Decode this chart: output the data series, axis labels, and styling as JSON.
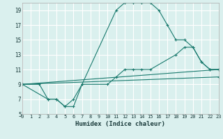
{
  "background_color": "#daf0ee",
  "grid_color": "#ffffff",
  "line_color": "#1a7a6e",
  "xlabel": "Humidex (Indice chaleur)",
  "ylim": [
    5,
    20
  ],
  "xlim": [
    0,
    23
  ],
  "yticks": [
    5,
    7,
    9,
    11,
    13,
    15,
    17,
    19
  ],
  "xticks": [
    0,
    1,
    2,
    3,
    4,
    5,
    6,
    7,
    8,
    9,
    10,
    11,
    12,
    13,
    14,
    15,
    16,
    17,
    18,
    19,
    20,
    21,
    22,
    23
  ],
  "series": [
    {
      "x": [
        0,
        2,
        3,
        4,
        5,
        6,
        7,
        11,
        12,
        13,
        14,
        15,
        16,
        17,
        18,
        19,
        20,
        21,
        22,
        23
      ],
      "y": [
        9,
        9,
        7,
        7,
        6,
        7,
        9,
        19,
        20,
        20,
        20,
        20,
        19,
        17,
        15,
        15,
        14,
        12,
        11,
        11
      ]
    },
    {
      "x": [
        0,
        3,
        4,
        5,
        6,
        7,
        10,
        11,
        12,
        13,
        14,
        15,
        18,
        19,
        20,
        21,
        22,
        23
      ],
      "y": [
        9,
        7,
        7,
        6,
        6,
        9,
        9,
        10,
        11,
        11,
        11,
        11,
        13,
        14,
        14,
        12,
        11,
        11
      ]
    },
    {
      "x": [
        0,
        23
      ],
      "y": [
        9,
        11
      ]
    },
    {
      "x": [
        0,
        23
      ],
      "y": [
        9,
        10
      ]
    }
  ]
}
